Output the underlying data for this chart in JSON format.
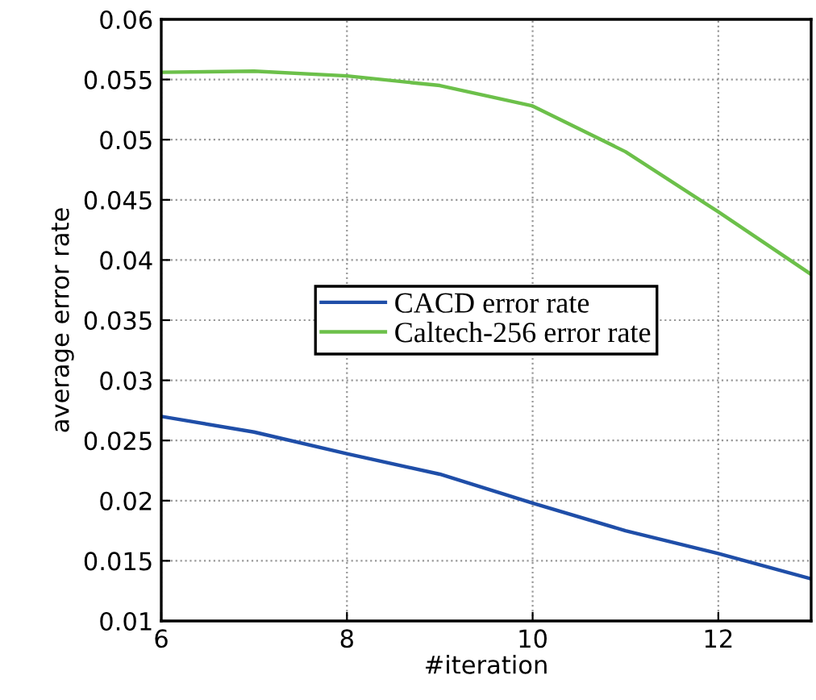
{
  "chart_data": {
    "type": "line",
    "xlabel": "#iteration",
    "ylabel": "average error rate",
    "x": [
      6,
      7,
      8,
      9,
      10,
      11,
      12,
      13
    ],
    "series": [
      {
        "name": "CACD error rate",
        "color": "#1f4ea8",
        "values": [
          0.027,
          0.0257,
          0.0239,
          0.0222,
          0.0198,
          0.0175,
          0.0156,
          0.0135
        ]
      },
      {
        "name": "Caltech-256 error rate",
        "color": "#6cc04a",
        "values": [
          0.0556,
          0.0557,
          0.0553,
          0.0545,
          0.0528,
          0.049,
          0.044,
          0.0388
        ]
      }
    ],
    "xlim": [
      6,
      13
    ],
    "ylim": [
      0.01,
      0.06
    ],
    "xticks": [
      6,
      8,
      10,
      12
    ],
    "yticks": [
      0.01,
      0.015,
      0.02,
      0.025,
      0.03,
      0.035,
      0.04,
      0.045,
      0.05,
      0.055,
      0.06
    ],
    "grid": true,
    "legend": "center",
    "line_style": "solid",
    "marker": "none"
  }
}
